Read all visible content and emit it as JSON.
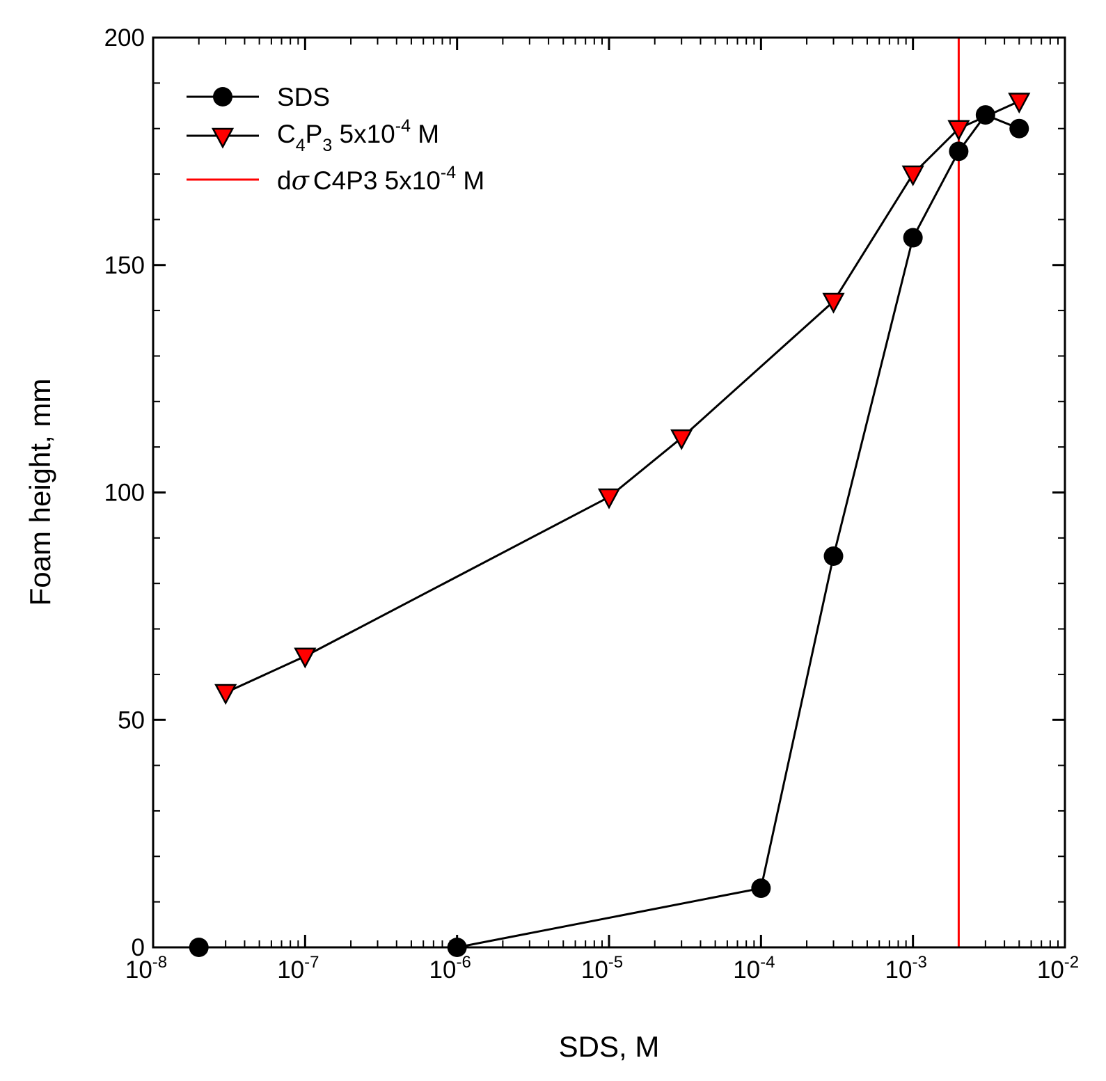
{
  "chart_data": {
    "type": "line",
    "title": "",
    "xlabel": "SDS, M",
    "ylabel": "Foam height, mm",
    "xscale": "log",
    "xlim": [
      1e-08,
      0.01
    ],
    "ylim": [
      0,
      200
    ],
    "grid": false,
    "legend_position": "top-left",
    "x_ticks": [
      {
        "base": "10",
        "exp": "-8"
      },
      {
        "base": "10",
        "exp": "-7"
      },
      {
        "base": "10",
        "exp": "-6"
      },
      {
        "base": "10",
        "exp": "-5"
      },
      {
        "base": "10",
        "exp": "-4"
      },
      {
        "base": "10",
        "exp": "-3"
      },
      {
        "base": "10",
        "exp": "-2"
      }
    ],
    "y_ticks": [
      "0",
      "50",
      "100",
      "150",
      "200"
    ],
    "series": [
      {
        "name": "SDS",
        "marker": "circle",
        "color": "#000000",
        "points": [
          {
            "x": 2e-08,
            "y": 0
          },
          {
            "x": 1e-06,
            "y": 0
          },
          {
            "x": 0.0001,
            "y": 13
          },
          {
            "x": 0.0003,
            "y": 86
          },
          {
            "x": 0.001,
            "y": 156
          },
          {
            "x": 0.002,
            "y": 175
          },
          {
            "x": 0.003,
            "y": 183
          },
          {
            "x": 0.005,
            "y": 180
          }
        ]
      },
      {
        "name": "C4P3 5x10-4 M",
        "marker": "triangle-down",
        "color": "#ff0000",
        "points": [
          {
            "x": 3e-08,
            "y": 56
          },
          {
            "x": 1e-07,
            "y": 64
          },
          {
            "x": 1e-05,
            "y": 99
          },
          {
            "x": 3e-05,
            "y": 112
          },
          {
            "x": 0.0003,
            "y": 142
          },
          {
            "x": 0.001,
            "y": 170
          },
          {
            "x": 0.002,
            "y": 180
          },
          {
            "x": 0.005,
            "y": 186
          }
        ]
      }
    ],
    "vline": {
      "name": "dσC4P3 5x10-4 M",
      "x": 0.002,
      "color": "#ff0000"
    }
  },
  "legend": {
    "items": [
      {
        "main": "SDS"
      },
      {
        "main": "C",
        "sub1": "4",
        "mid": "P",
        "sub2": "3",
        "rest": " 5x10",
        "sup": "-4",
        "tail": " M"
      },
      {
        "d": "d",
        "sigma": "σ",
        "rest": "C4P3 5x10",
        "sup": "-4",
        "tail": " M"
      }
    ]
  }
}
